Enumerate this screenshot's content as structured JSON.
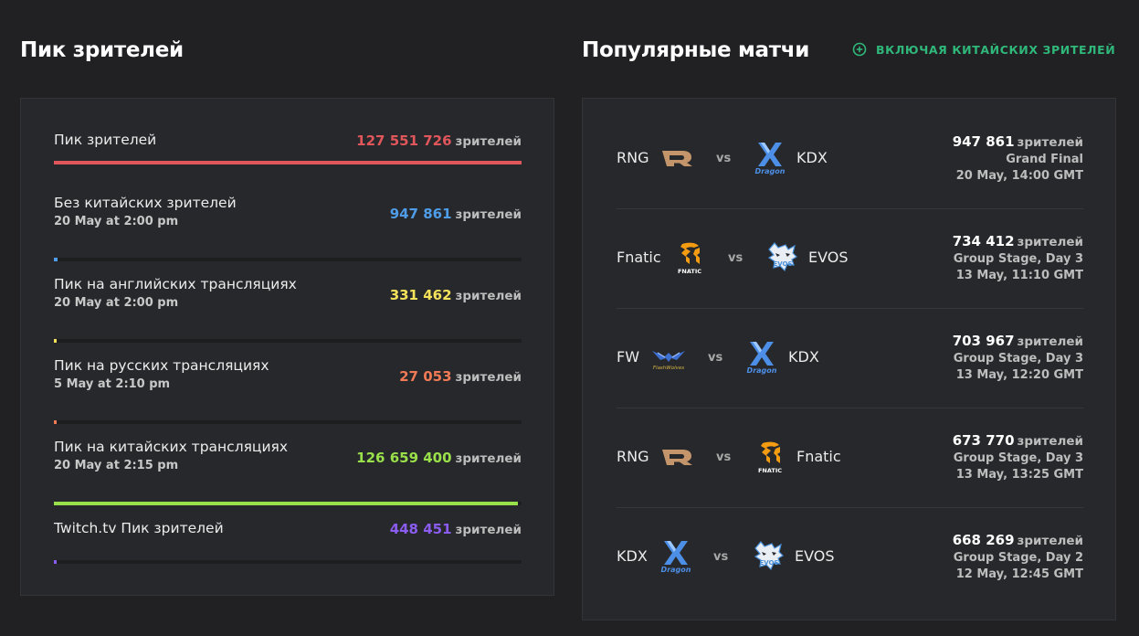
{
  "left": {
    "title": "Пик зрителей",
    "unit": "зрителей",
    "stats": [
      {
        "label": "Пик зрителей",
        "date": "",
        "value": "127 551 726",
        "color": "#e0565b",
        "fraction": 1.0
      },
      {
        "label": "Без китайских зрителей",
        "date": "20 May at 2:00 pm",
        "value": "947 861",
        "color": "#4f9de8",
        "fraction": 0.0074
      },
      {
        "label": "Пик на английских трансляциях",
        "date": "20 May at 2:00 pm",
        "value": "331 462",
        "color": "#f3e25a",
        "fraction": 0.0026
      },
      {
        "label": "Пик на русских трансляциях",
        "date": "5 May at 2:10 pm",
        "value": "27 053",
        "color": "#f07a55",
        "fraction": 0.0002
      },
      {
        "label": "Пик на китайских трансляциях",
        "date": "20 May at 2:15 pm",
        "value": "126 659 400",
        "color": "#9ae04a",
        "fraction": 0.993
      },
      {
        "label": "Twitch.tv Пик зрителей",
        "date": "",
        "value": "448 451",
        "color": "#8b5cf0",
        "fraction": 0.0035
      }
    ]
  },
  "right": {
    "title": "Популярные матчи",
    "toggle_label": "ВКЛЮЧАЯ КИТАЙСКИХ ЗРИТЕЛЕЙ",
    "vs_label": "vs",
    "unit": "зрителей",
    "matches": [
      {
        "team1": "RNG",
        "logo1": "rng-logo-icon",
        "team2": "KDX",
        "logo2": "kdx-logo-icon",
        "viewers": "947 861",
        "stage": "Grand Final",
        "time": "20 May, 14:00 GMT"
      },
      {
        "team1": "Fnatic",
        "logo1": "fnatic-logo-icon",
        "team2": "EVOS",
        "logo2": "evos-logo-icon",
        "viewers": "734 412",
        "stage": "Group Stage, Day 3",
        "time": "13 May, 11:10 GMT"
      },
      {
        "team1": "FW",
        "logo1": "fw-logo-icon",
        "team2": "KDX",
        "logo2": "kdx-logo-icon",
        "viewers": "703 967",
        "stage": "Group Stage, Day 3",
        "time": "13 May, 12:20 GMT"
      },
      {
        "team1": "RNG",
        "logo1": "rng-logo-icon",
        "team2": "Fnatic",
        "logo2": "fnatic-logo-icon",
        "viewers": "673 770",
        "stage": "Group Stage, Day 3",
        "time": "13 May, 13:25 GMT"
      },
      {
        "team1": "KDX",
        "logo1": "kdx-logo-icon",
        "team2": "EVOS",
        "logo2": "evos-logo-icon",
        "viewers": "668 269",
        "stage": "Group Stage, Day 2",
        "time": "12 May, 12:45 GMT"
      }
    ]
  },
  "colors": {
    "accent_green": "#2fb87a",
    "panel_bg": "#27282b",
    "page_bg": "#212124"
  }
}
